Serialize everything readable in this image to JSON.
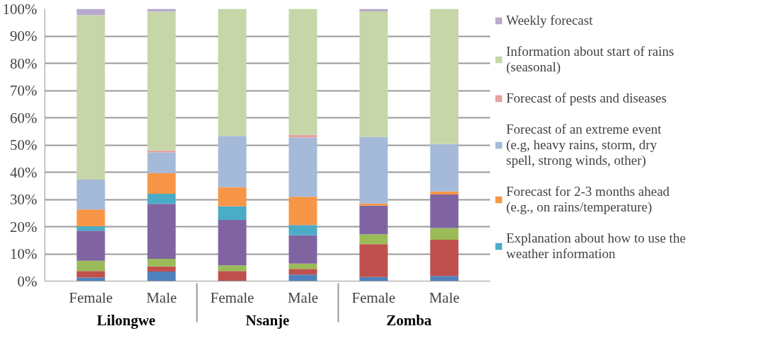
{
  "chart_data": {
    "type": "bar",
    "stacked": true,
    "categories": [
      "Female",
      "Male",
      "Female",
      "Male",
      "Female",
      "Male"
    ],
    "annotations": [
      "Lilongwe",
      "Nsanje",
      "Zomba"
    ],
    "ylim": [
      0,
      100
    ],
    "yticks": [
      {
        "value": 0,
        "label": "0%"
      },
      {
        "value": 10,
        "label": "10%"
      },
      {
        "value": 20,
        "label": "20%"
      },
      {
        "value": 30,
        "label": "30%"
      },
      {
        "value": 40,
        "label": "40%"
      },
      {
        "value": 50,
        "label": "50%"
      },
      {
        "value": 60,
        "label": "60%"
      },
      {
        "value": 70,
        "label": "70%"
      },
      {
        "value": 80,
        "label": "80%"
      },
      {
        "value": 90,
        "label": "90%"
      },
      {
        "value": 100,
        "label": "100%"
      }
    ],
    "grid": "y",
    "legend": "right",
    "series": [
      {
        "color": "#4f81bd",
        "values": [
          1.3,
          3.5,
          0,
          2.4,
          1.5,
          1.9
        ]
      },
      {
        "color": "#c0504d",
        "values": [
          2.4,
          1.9,
          3.7,
          2.1,
          12.1,
          13.3
        ]
      },
      {
        "color": "#9bbb59",
        "values": [
          3.8,
          2.8,
          2.1,
          1.9,
          3.6,
          4.3
        ]
      },
      {
        "color": "#8064a2",
        "values": [
          11.0,
          20.2,
          16.7,
          10.4,
          10.5,
          12.3
        ]
      },
      {
        "name": "Explanation about how to use the weather information",
        "color": "#4bacc6",
        "values": [
          1.6,
          3.7,
          5.0,
          3.8,
          0,
          0
        ]
      },
      {
        "name": "Forecast for 2-3 months ahead (e.g., on rains/temperature)",
        "color": "#f79646",
        "values": [
          6.2,
          7.6,
          7.0,
          10.4,
          0.8,
          1.1
        ]
      },
      {
        "name": "Forecast of an extreme event (e.g, heavy rains, storm, dry spell, strong winds, other)",
        "color": "#a5b9d9",
        "values": [
          11.0,
          7.6,
          18.8,
          21.7,
          24.4,
          17.4
        ]
      },
      {
        "name": "Forecast of pests and diseases",
        "color": "#e6a0a0",
        "values": [
          0,
          0.7,
          0,
          1.0,
          0,
          0
        ]
      },
      {
        "name": "Information about start of rains (seasonal)",
        "color": "#c6d6a8",
        "values": [
          60.4,
          51.0,
          46.7,
          46.3,
          46.2,
          49.7
        ]
      },
      {
        "name": "Weekly forecast",
        "color": "#b8aacc",
        "values": [
          2.3,
          1.0,
          0,
          0,
          0.9,
          0
        ]
      }
    ]
  }
}
